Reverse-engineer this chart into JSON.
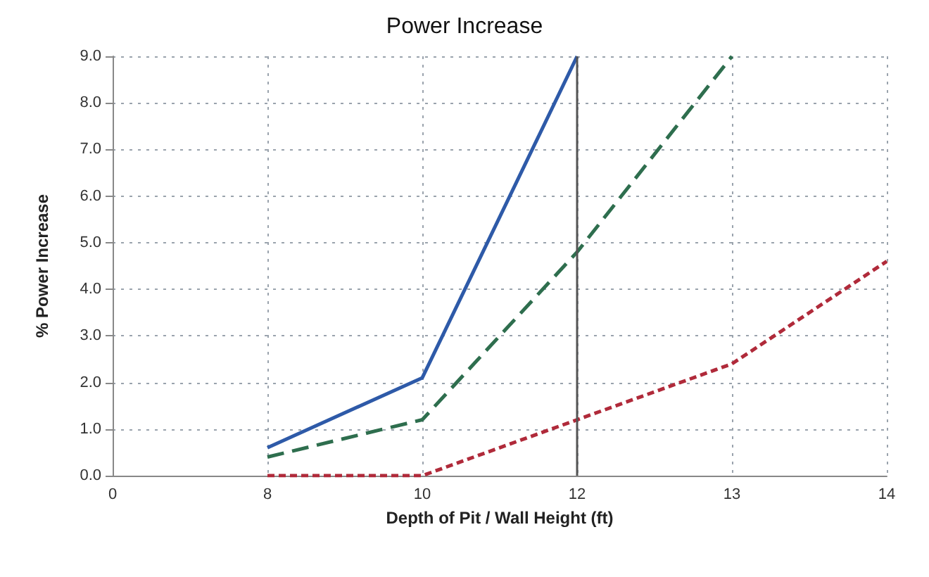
{
  "chart_data": {
    "type": "line",
    "title": "Power Increase",
    "xlabel": "Depth of Pit / Wall Height (ft)",
    "ylabel": "% Power Increase",
    "categories": [
      "0",
      "8",
      "10",
      "12",
      "13",
      "14"
    ],
    "series": [
      {
        "color": "#2e5aa8",
        "line_style": "solid",
        "values": [
          null,
          0.6,
          2.1,
          9.0,
          null,
          null
        ]
      },
      {
        "color": "#2e6e4e",
        "line_style": "dashed",
        "values": [
          null,
          0.4,
          1.2,
          4.8,
          9.0,
          null
        ]
      },
      {
        "color": "#b02a3a",
        "line_style": "dotted",
        "values": [
          null,
          0,
          0,
          1.2,
          2.4,
          4.6
        ]
      }
    ],
    "ylim": [
      0,
      9
    ],
    "yticks": [
      {
        "value": 0,
        "label": "0.0"
      },
      {
        "value": 1,
        "label": "1.0"
      },
      {
        "value": 2,
        "label": "2.0"
      },
      {
        "value": 3,
        "label": "3.0"
      },
      {
        "value": 4,
        "label": "4.0"
      },
      {
        "value": 5,
        "label": "5.0"
      },
      {
        "value": 6,
        "label": "6.0"
      },
      {
        "value": 7,
        "label": "7.0"
      },
      {
        "value": 8,
        "label": "8.0"
      },
      {
        "value": 9,
        "label": "9.0"
      }
    ],
    "ref_lines": [
      {
        "axis": "x",
        "value": "12",
        "color": "#555555"
      }
    ],
    "grid": true,
    "marker": "none"
  }
}
